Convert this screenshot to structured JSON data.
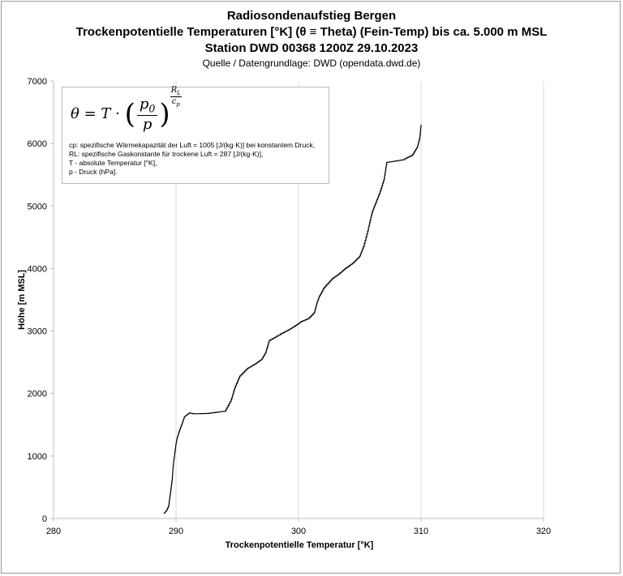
{
  "chart_data": {
    "type": "line",
    "title": "Radiosondenaufstieg Bergen",
    "subtitle_1": "Trockenpotentielle Temperaturen [°K] (θ ≡ Theta) (Fein-Temp) bis ca. 5.000 m MSL",
    "subtitle_2": "Station DWD 00368 1200Z 29.10.2023",
    "source": "Quelle / Datengrundlage: DWD (opendata.dwd.de)",
    "xlabel": "Trockenpotentielle Temperatur [°K]",
    "ylabel": "Höhe [m MSL]",
    "xlim": [
      280,
      320
    ],
    "ylim": [
      0,
      7000
    ],
    "xticks": [
      "280",
      "290",
      "300",
      "310",
      "320"
    ],
    "yticks": [
      "0",
      "1000",
      "2000",
      "3000",
      "4000",
      "5000",
      "6000",
      "7000"
    ],
    "grid": "vertical",
    "series": [
      {
        "color": "#000000",
        "x": [
          289.0,
          289.2,
          289.4,
          289.5,
          289.6,
          289.7,
          289.75,
          289.8,
          289.9,
          290.0,
          290.1,
          290.3,
          290.5,
          290.6,
          290.7,
          290.9,
          291.1,
          291.3,
          291.5,
          292.5,
          294.0,
          294.5,
          294.8,
          295.2,
          295.8,
          296.5,
          297.0,
          297.3,
          297.6,
          298.5,
          299.2,
          299.7,
          300.2,
          300.8,
          301.3,
          301.5,
          301.7,
          302.1,
          302.7,
          303.2,
          303.8,
          304.5,
          305.0,
          305.3,
          305.7,
          306.0,
          306.3,
          306.6,
          307.0,
          307.2,
          308.5,
          309.3,
          309.7,
          309.9,
          310.0
        ],
        "y": [
          80,
          120,
          200,
          350,
          500,
          650,
          800,
          900,
          1050,
          1200,
          1300,
          1420,
          1520,
          1580,
          1630,
          1660,
          1690,
          1680,
          1675,
          1680,
          1720,
          1900,
          2100,
          2280,
          2400,
          2480,
          2550,
          2650,
          2850,
          2950,
          3020,
          3080,
          3150,
          3200,
          3300,
          3450,
          3560,
          3700,
          3830,
          3900,
          4000,
          4100,
          4200,
          4350,
          4650,
          4900,
          5050,
          5200,
          5450,
          5700,
          5740,
          5820,
          5950,
          6100,
          6300
        ]
      }
    ]
  }
}
